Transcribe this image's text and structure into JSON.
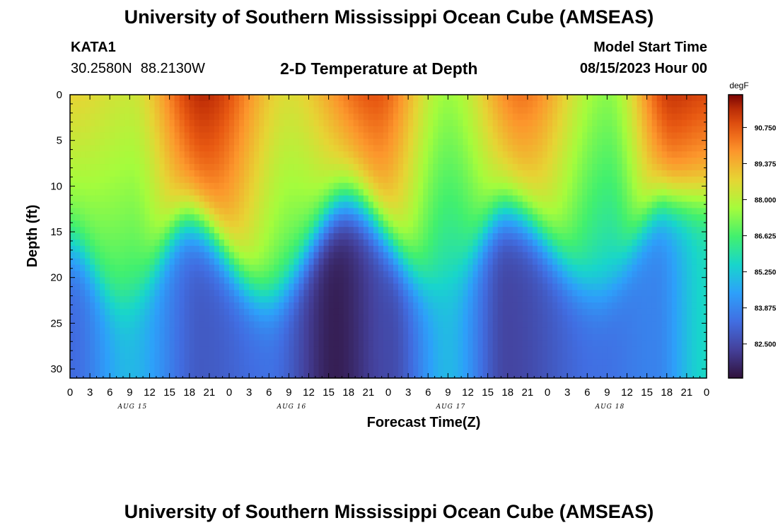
{
  "header": {
    "title": "University of Southern Mississippi Ocean Cube (AMSEAS)",
    "station": "KATA1",
    "lat": "30.2580N",
    "lon": "88.2130W",
    "subtitle": "2-D Temperature at Depth",
    "model_start_label": "Model Start Time",
    "model_start_value": "08/15/2023 Hour 00"
  },
  "footer": {
    "title": "University of Southern Mississippi Ocean Cube (AMSEAS)"
  },
  "chart_data": {
    "type": "heatmap",
    "title": "2-D Temperature at Depth",
    "xlabel": "Forecast Time(Z)",
    "ylabel": "Depth (ft)",
    "units": "degF",
    "x_hours_range": [
      0,
      96
    ],
    "x_tick_step_hours": 3,
    "x_tick_labels": [
      "0",
      "3",
      "6",
      "9",
      "12",
      "15",
      "18",
      "21",
      "0",
      "3",
      "6",
      "9",
      "12",
      "15",
      "18",
      "21",
      "0",
      "3",
      "6",
      "9",
      "12",
      "15",
      "18",
      "21",
      "0",
      "3",
      "6",
      "9",
      "12",
      "15",
      "18",
      "21",
      "0"
    ],
    "date_labels": [
      {
        "text": "AUG 15",
        "hour": 9
      },
      {
        "text": "AUG 16",
        "hour": 33
      },
      {
        "text": "AUG 17",
        "hour": 57
      },
      {
        "text": "AUG 18",
        "hour": 81
      }
    ],
    "ylim": [
      0,
      31
    ],
    "y_ticks": [
      0,
      5,
      10,
      15,
      20,
      25,
      30
    ],
    "colorbar": {
      "range": [
        81.2,
        92.0
      ],
      "ticks": [
        "90.750",
        "89.375",
        "88.000",
        "86.625",
        "85.250",
        "83.875",
        "82.500"
      ]
    },
    "thermocline_depth_ft": [
      {
        "hour": 0,
        "depth": 17
      },
      {
        "hour": 8,
        "depth": 23.5
      },
      {
        "hour": 18,
        "depth": 14
      },
      {
        "hour": 30,
        "depth": 22.5
      },
      {
        "hour": 42,
        "depth": 12
      },
      {
        "hour": 56,
        "depth": 22
      },
      {
        "hour": 66,
        "depth": 13
      },
      {
        "hour": 80,
        "depth": 22
      },
      {
        "hour": 90,
        "depth": 12
      },
      {
        "hour": 96,
        "depth": 12
      }
    ],
    "surface_temp_degF": [
      {
        "hour": 0,
        "t": 88.8
      },
      {
        "hour": 9,
        "t": 88.3
      },
      {
        "hour": 20,
        "t": 91.5
      },
      {
        "hour": 33,
        "t": 88.6
      },
      {
        "hour": 46,
        "t": 90.8
      },
      {
        "hour": 57,
        "t": 87.6
      },
      {
        "hour": 68,
        "t": 90.3
      },
      {
        "hour": 81,
        "t": 87.4
      },
      {
        "hour": 91,
        "t": 91.3
      },
      {
        "hour": 96,
        "t": 91.0
      }
    ],
    "bottom_temp_degF": [
      {
        "hour": 0,
        "t": 83.3
      },
      {
        "hour": 9,
        "t": 84.9
      },
      {
        "hour": 20,
        "t": 82.9
      },
      {
        "hour": 30,
        "t": 83.4
      },
      {
        "hour": 40,
        "t": 81.5
      },
      {
        "hour": 48,
        "t": 82.5
      },
      {
        "hour": 57,
        "t": 84.9
      },
      {
        "hour": 66,
        "t": 82.4
      },
      {
        "hour": 80,
        "t": 83.4
      },
      {
        "hour": 88,
        "t": 83.8
      },
      {
        "hour": 96,
        "t": 85.6
      }
    ]
  }
}
